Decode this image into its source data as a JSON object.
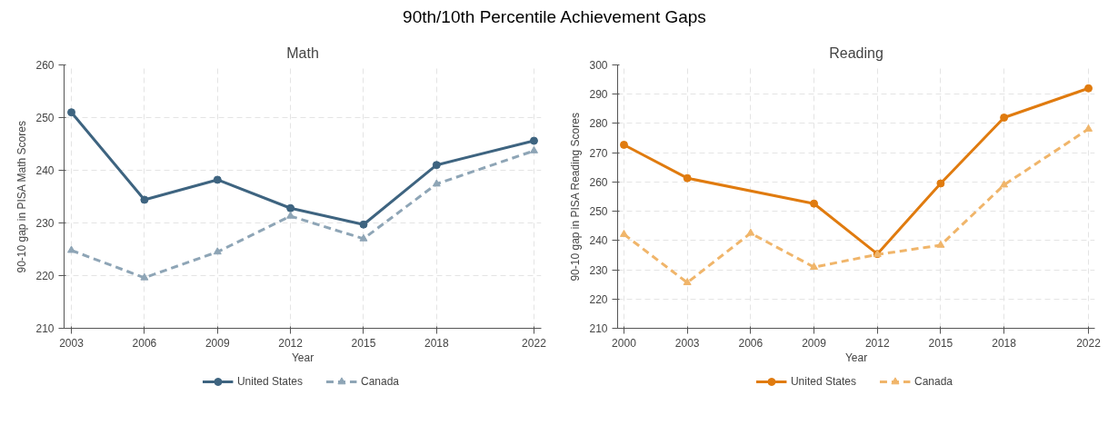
{
  "chart_data": [
    {
      "type": "line",
      "title": "Math",
      "annotations": [
        "90th/10th Percentile Achievement Gaps"
      ],
      "xlabel": "Year",
      "ylabel": "90-10 gap in PISA Math Scores",
      "x": [
        2003,
        2006,
        2009,
        2012,
        2015,
        2018,
        2022
      ],
      "series": [
        {
          "name": "United States",
          "color": "#3e6480",
          "marker": "circle",
          "line_style": "solid",
          "values": [
            251.0,
            234.4,
            238.2,
            232.8,
            229.7,
            241.0,
            245.6
          ]
        },
        {
          "name": "Canada",
          "color": "#8ea5b6",
          "marker": "triangle",
          "line_style": "dashed",
          "values": [
            224.8,
            219.6,
            224.5,
            231.3,
            227.0,
            237.4,
            243.7
          ]
        }
      ],
      "xlim": [
        2002.7,
        2022.3
      ],
      "xticks": [
        2003,
        2006,
        2009,
        2012,
        2015,
        2018,
        2022
      ],
      "ylim": [
        210,
        260
      ],
      "yticks": [
        210,
        220,
        230,
        240,
        250,
        260
      ],
      "grid": true,
      "legend": "bottom"
    },
    {
      "type": "line",
      "title": "Reading",
      "xlabel": "Year",
      "ylabel": "90-10 gap in PISA Reading Scores",
      "series": [
        {
          "name": "United States",
          "color": "#e07b0f",
          "marker": "circle",
          "line_style": "solid",
          "x": [
            2000,
            2003,
            2009,
            2012,
            2015,
            2018,
            2022
          ],
          "values": [
            272.7,
            261.3,
            252.6,
            235.4,
            259.5,
            282.0,
            292.0
          ]
        },
        {
          "name": "Canada",
          "color": "#f0b56a",
          "marker": "triangle",
          "line_style": "dashed",
          "x": [
            2000,
            2003,
            2006,
            2009,
            2012,
            2015,
            2018,
            2022
          ],
          "values": [
            242.1,
            225.6,
            242.5,
            230.9,
            235.2,
            238.4,
            259.0,
            278.1
          ]
        }
      ],
      "xlim": [
        1999.7,
        2022.3
      ],
      "xticks": [
        2000,
        2003,
        2006,
        2009,
        2012,
        2015,
        2018,
        2022
      ],
      "ylim": [
        210,
        300
      ],
      "yticks": [
        210,
        220,
        230,
        240,
        250,
        260,
        270,
        280,
        290,
        300
      ],
      "grid": true,
      "legend": "bottom"
    }
  ]
}
